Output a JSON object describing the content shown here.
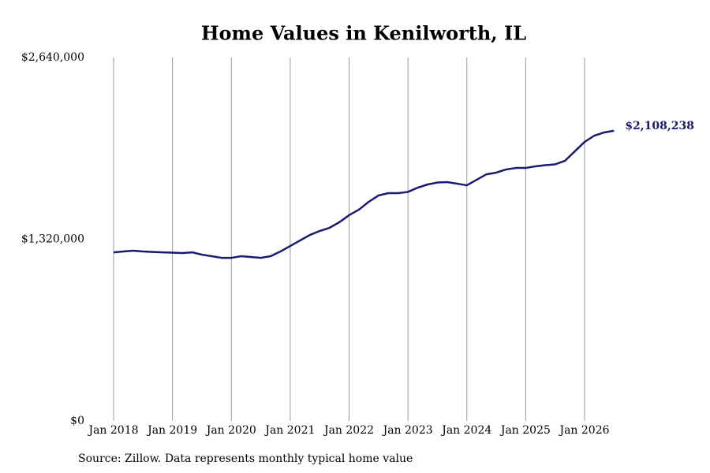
{
  "chart_data": {
    "type": "line",
    "title": "Home Values in Kenilworth, IL",
    "source": "Source: Zillow. Data represents monthly typical home value",
    "x": [
      "2018-01",
      "2018-03",
      "2018-05",
      "2018-07",
      "2018-09",
      "2018-11",
      "2019-01",
      "2019-03",
      "2019-05",
      "2019-07",
      "2019-09",
      "2019-11",
      "2020-01",
      "2020-03",
      "2020-05",
      "2020-07",
      "2020-09",
      "2020-11",
      "2021-01",
      "2021-03",
      "2021-05",
      "2021-07",
      "2021-09",
      "2021-11",
      "2022-01",
      "2022-03",
      "2022-05",
      "2022-07",
      "2022-09",
      "2022-11",
      "2023-01",
      "2023-03",
      "2023-05",
      "2023-07",
      "2023-09",
      "2023-11",
      "2024-01",
      "2024-03",
      "2024-05",
      "2024-07",
      "2024-09",
      "2024-11",
      "2025-01",
      "2025-03",
      "2025-05",
      "2025-07",
      "2025-09",
      "2025-11",
      "2026-01",
      "2026-03",
      "2026-05",
      "2026-07"
    ],
    "series": [
      {
        "color": "#1a1a6e",
        "values": [
          1225000,
          1231000,
          1237000,
          1231000,
          1228000,
          1225000,
          1223000,
          1220000,
          1225000,
          1208000,
          1197000,
          1185000,
          1185000,
          1197000,
          1191000,
          1185000,
          1197000,
          1231000,
          1271000,
          1311000,
          1351000,
          1380000,
          1403000,
          1443000,
          1495000,
          1535000,
          1592000,
          1638000,
          1655000,
          1655000,
          1664000,
          1695000,
          1718000,
          1732000,
          1735000,
          1724000,
          1712000,
          1752000,
          1792000,
          1804000,
          1827000,
          1838000,
          1838000,
          1850000,
          1858000,
          1864000,
          1890000,
          1958000,
          2027000,
          2073000,
          2096000,
          2108238
        ]
      }
    ],
    "end_label": "$2,108,238",
    "ylim": [
      0,
      2640000
    ],
    "yticks": [
      {
        "value": 0,
        "label": "$0"
      },
      {
        "value": 1320000,
        "label": "$1,320,000"
      },
      {
        "value": 2640000,
        "label": "$2,640,000"
      }
    ],
    "xticks": [
      {
        "value": "2018-01",
        "label": "Jan 2018"
      },
      {
        "value": "2019-01",
        "label": "Jan 2019"
      },
      {
        "value": "2020-01",
        "label": "Jan 2020"
      },
      {
        "value": "2021-01",
        "label": "Jan 2021"
      },
      {
        "value": "2022-01",
        "label": "Jan 2022"
      },
      {
        "value": "2023-01",
        "label": "Jan 2023"
      },
      {
        "value": "2024-01",
        "label": "Jan 2024"
      },
      {
        "value": "2025-01",
        "label": "Jan 2025"
      },
      {
        "value": "2026-01",
        "label": "Jan 2026"
      }
    ],
    "grid": "x"
  }
}
